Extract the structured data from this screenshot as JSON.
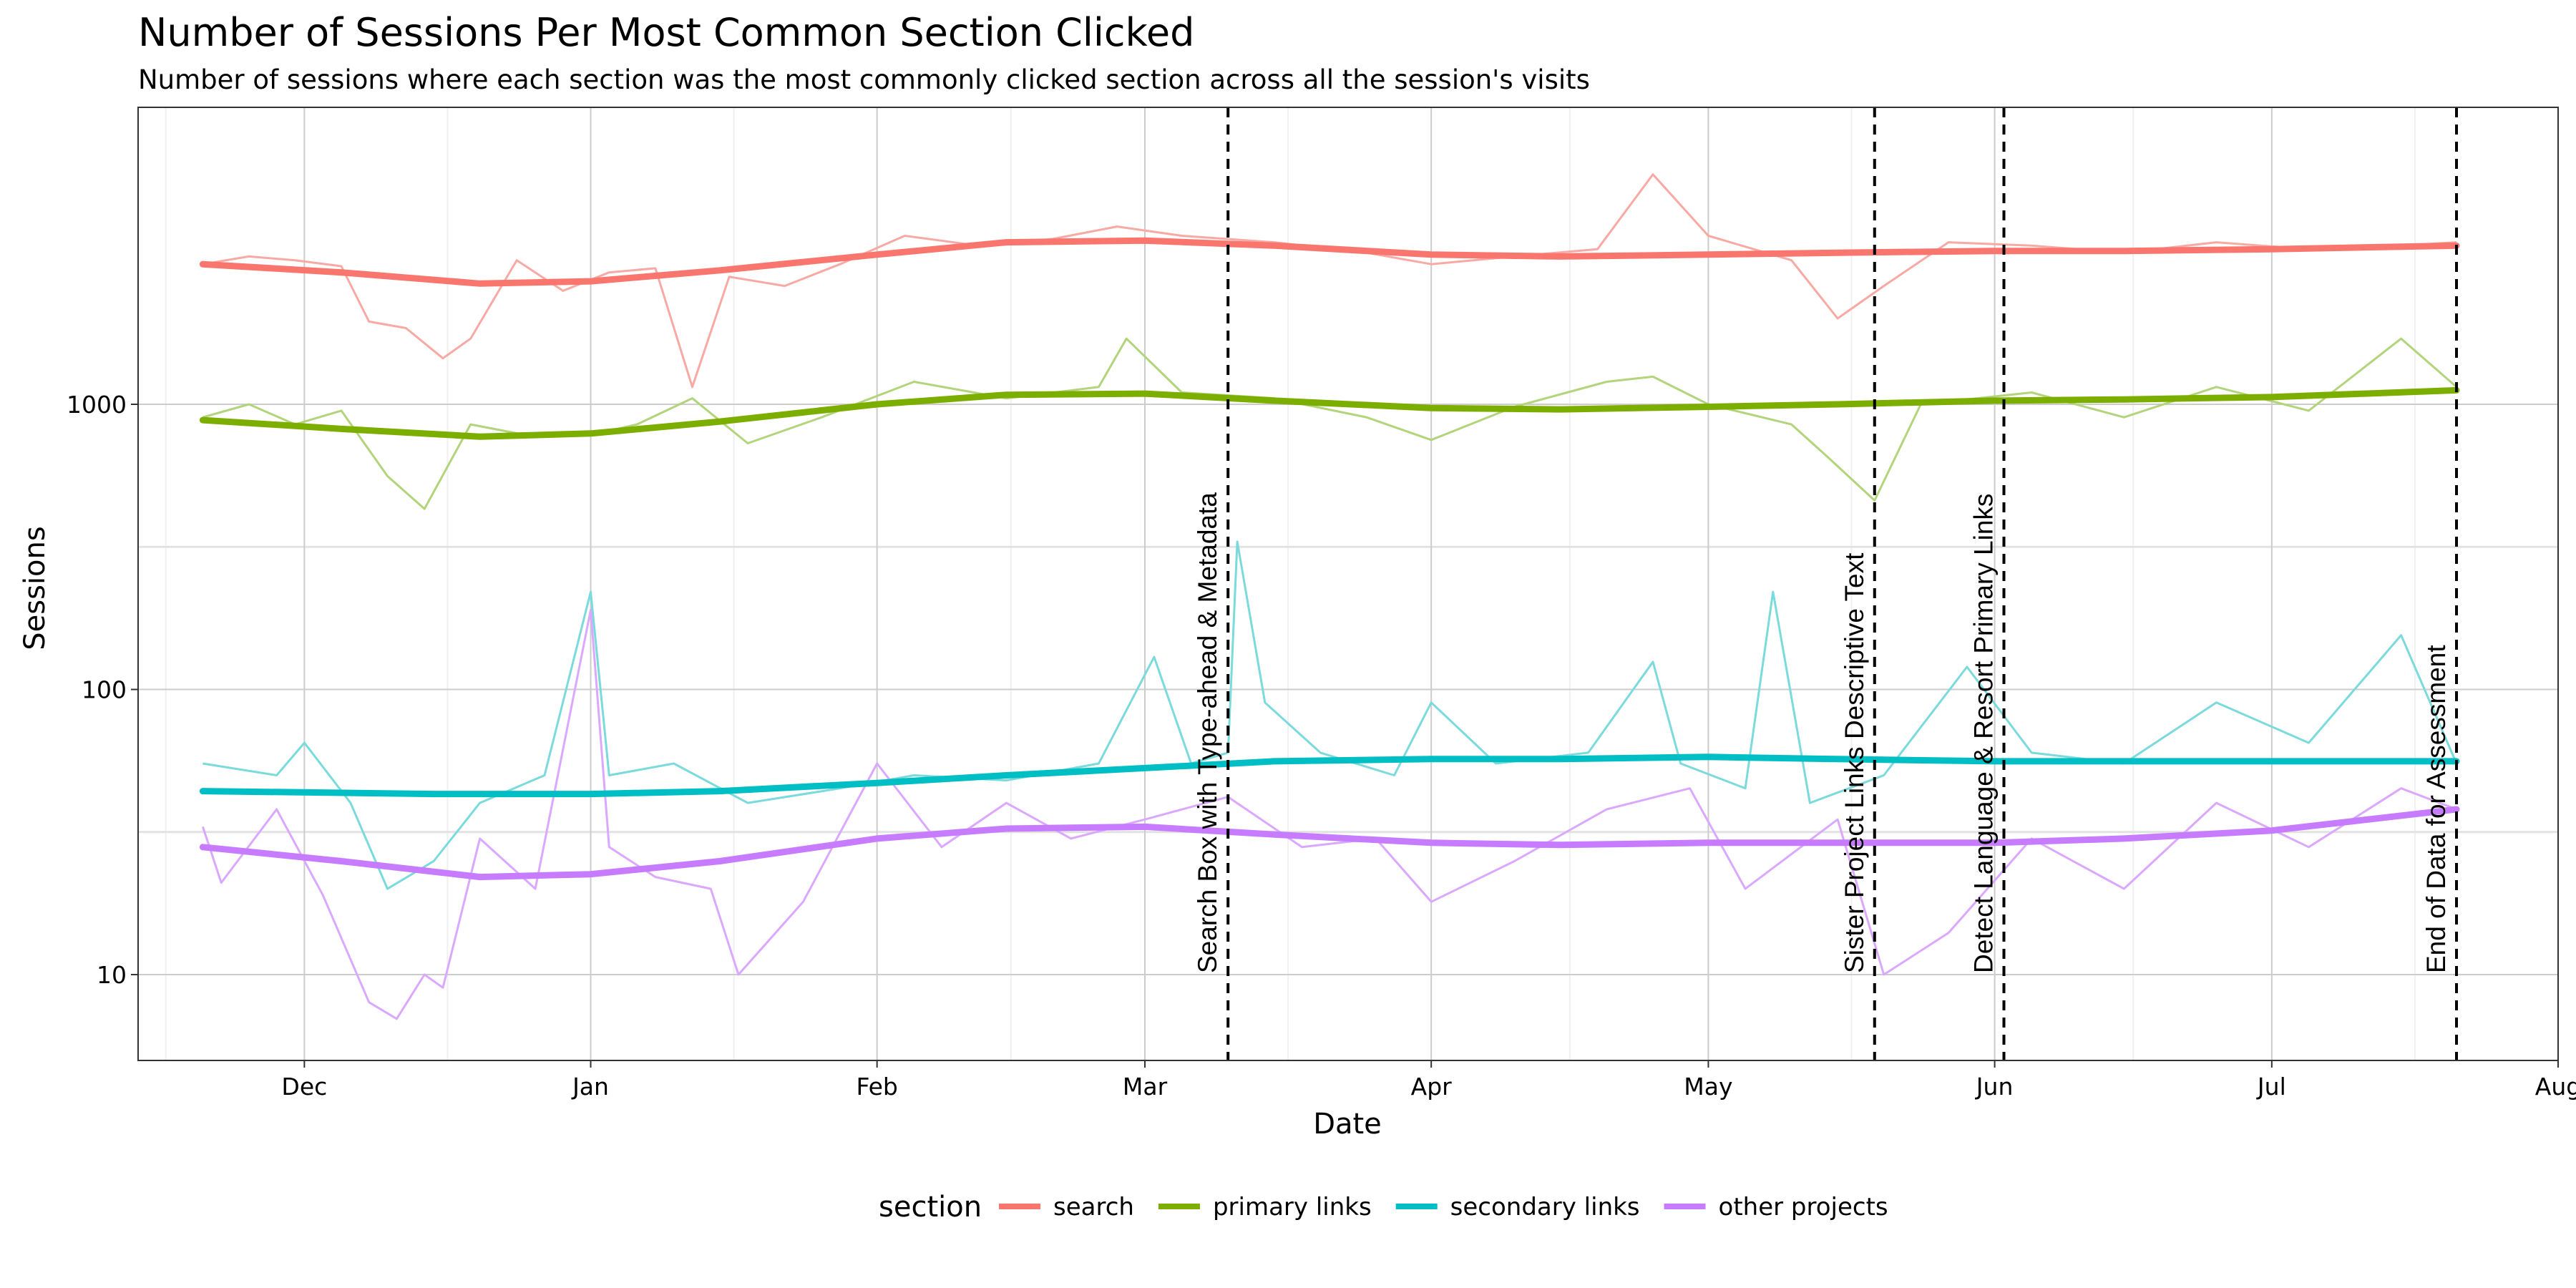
{
  "chart_data": {
    "type": "line",
    "title": "Number of Sessions Per Most Common Section Clicked",
    "subtitle": "Number of sessions where each section was the most commonly clicked section across all the session's visits",
    "xlabel": "Date",
    "ylabel": "Sessions",
    "y_scale": "log10",
    "ylim": [
      5,
      11000
    ],
    "y_ticks": [
      {
        "value": 10,
        "label": "10"
      },
      {
        "value": 100,
        "label": "100"
      },
      {
        "value": 1000,
        "label": "1000"
      }
    ],
    "x_range": [
      "2015-11-13",
      "2016-08-01"
    ],
    "x_ticks": [
      {
        "date": "2015-12-01",
        "label": "Dec"
      },
      {
        "date": "2016-01-01",
        "label": "Jan"
      },
      {
        "date": "2016-02-01",
        "label": "Feb"
      },
      {
        "date": "2016-03-01",
        "label": "Mar"
      },
      {
        "date": "2016-04-01",
        "label": "Apr"
      },
      {
        "date": "2016-05-01",
        "label": "May"
      },
      {
        "date": "2016-06-01",
        "label": "Jun"
      },
      {
        "date": "2016-07-01",
        "label": "Jul"
      },
      {
        "date": "2016-08-01",
        "label": "Aug"
      }
    ],
    "grid": true,
    "legend": {
      "title": "section",
      "placement": "bottom"
    },
    "series_colors": {
      "search": "#F8766D",
      "primary links": "#7CAE00",
      "secondary links": "#00BFC4",
      "other projects": "#C77CFF"
    },
    "series": [
      {
        "name": "search",
        "raw_color": "#F8A9A4",
        "smooth_color": "#F8766D",
        "points": [
          [
            "2015-11-20",
            3100
          ],
          [
            "2015-11-25",
            3300
          ],
          [
            "2015-11-30",
            3200
          ],
          [
            "2015-12-05",
            3050
          ],
          [
            "2015-12-08",
            1950
          ],
          [
            "2015-12-12",
            1850
          ],
          [
            "2015-12-16",
            1450
          ],
          [
            "2015-12-19",
            1700
          ],
          [
            "2015-12-24",
            3200
          ],
          [
            "2015-12-29",
            2500
          ],
          [
            "2016-01-03",
            2900
          ],
          [
            "2016-01-08",
            3000
          ],
          [
            "2016-01-12",
            1150
          ],
          [
            "2016-01-16",
            2800
          ],
          [
            "2016-01-22",
            2600
          ],
          [
            "2016-01-28",
            3100
          ],
          [
            "2016-02-04",
            3900
          ],
          [
            "2016-02-12",
            3600
          ],
          [
            "2016-02-20",
            3800
          ],
          [
            "2016-02-27",
            4200
          ],
          [
            "2016-03-05",
            3900
          ],
          [
            "2016-03-15",
            3700
          ],
          [
            "2016-03-25",
            3400
          ],
          [
            "2016-04-01",
            3100
          ],
          [
            "2016-04-10",
            3300
          ],
          [
            "2016-04-19",
            3500
          ],
          [
            "2016-04-25",
            6400
          ],
          [
            "2016-05-01",
            3900
          ],
          [
            "2016-05-10",
            3200
          ],
          [
            "2016-05-15",
            2000
          ],
          [
            "2016-05-20",
            2600
          ],
          [
            "2016-05-27",
            3700
          ],
          [
            "2016-06-05",
            3600
          ],
          [
            "2016-06-15",
            3400
          ],
          [
            "2016-06-25",
            3700
          ],
          [
            "2016-07-05",
            3500
          ],
          [
            "2016-07-15",
            3600
          ],
          [
            "2016-07-21",
            3700
          ]
        ],
        "trend": [
          [
            "2015-11-20",
            3100
          ],
          [
            "2015-12-05",
            2900
          ],
          [
            "2015-12-20",
            2650
          ],
          [
            "2016-01-01",
            2700
          ],
          [
            "2016-01-15",
            2950
          ],
          [
            "2016-02-01",
            3350
          ],
          [
            "2016-02-15",
            3700
          ],
          [
            "2016-03-01",
            3750
          ],
          [
            "2016-03-15",
            3600
          ],
          [
            "2016-04-01",
            3350
          ],
          [
            "2016-04-15",
            3300
          ],
          [
            "2016-05-01",
            3350
          ],
          [
            "2016-05-15",
            3400
          ],
          [
            "2016-06-01",
            3450
          ],
          [
            "2016-06-15",
            3450
          ],
          [
            "2016-07-01",
            3500
          ],
          [
            "2016-07-21",
            3600
          ]
        ]
      },
      {
        "name": "primary links",
        "raw_color": "#B2D47A",
        "smooth_color": "#7CAE00",
        "points": [
          [
            "2015-11-20",
            900
          ],
          [
            "2015-11-25",
            1000
          ],
          [
            "2015-11-30",
            850
          ],
          [
            "2015-12-05",
            950
          ],
          [
            "2015-12-10",
            560
          ],
          [
            "2015-12-14",
            430
          ],
          [
            "2015-12-19",
            850
          ],
          [
            "2015-12-25",
            780
          ],
          [
            "2016-01-01",
            780
          ],
          [
            "2016-01-06",
            850
          ],
          [
            "2016-01-12",
            1050
          ],
          [
            "2016-01-18",
            730
          ],
          [
            "2016-01-26",
            900
          ],
          [
            "2016-02-05",
            1200
          ],
          [
            "2016-02-15",
            1050
          ],
          [
            "2016-02-25",
            1150
          ],
          [
            "2016-02-28",
            1700
          ],
          [
            "2016-03-05",
            1100
          ],
          [
            "2016-03-15",
            1050
          ],
          [
            "2016-03-25",
            900
          ],
          [
            "2016-04-01",
            750
          ],
          [
            "2016-04-10",
            980
          ],
          [
            "2016-04-20",
            1200
          ],
          [
            "2016-04-25",
            1250
          ],
          [
            "2016-05-01",
            1000
          ],
          [
            "2016-05-10",
            850
          ],
          [
            "2016-05-14",
            650
          ],
          [
            "2016-05-19",
            460
          ],
          [
            "2016-05-24",
            1000
          ],
          [
            "2016-06-05",
            1100
          ],
          [
            "2016-06-15",
            900
          ],
          [
            "2016-06-25",
            1150
          ],
          [
            "2016-07-05",
            950
          ],
          [
            "2016-07-15",
            1700
          ],
          [
            "2016-07-21",
            1150
          ]
        ],
        "trend": [
          [
            "2015-11-20",
            880
          ],
          [
            "2015-12-05",
            820
          ],
          [
            "2015-12-20",
            770
          ],
          [
            "2016-01-01",
            790
          ],
          [
            "2016-01-15",
            870
          ],
          [
            "2016-02-01",
            1000
          ],
          [
            "2016-02-15",
            1080
          ],
          [
            "2016-03-01",
            1090
          ],
          [
            "2016-03-15",
            1030
          ],
          [
            "2016-04-01",
            970
          ],
          [
            "2016-04-15",
            960
          ],
          [
            "2016-05-01",
            980
          ],
          [
            "2016-05-15",
            1000
          ],
          [
            "2016-06-01",
            1030
          ],
          [
            "2016-06-15",
            1040
          ],
          [
            "2016-07-01",
            1060
          ],
          [
            "2016-07-21",
            1120
          ]
        ]
      },
      {
        "name": "secondary links",
        "raw_color": "#7ADADC",
        "smooth_color": "#00BFC4",
        "points": [
          [
            "2015-11-20",
            55
          ],
          [
            "2015-11-28",
            50
          ],
          [
            "2015-12-01",
            65
          ],
          [
            "2015-12-06",
            40
          ],
          [
            "2015-12-10",
            20
          ],
          [
            "2015-12-15",
            25
          ],
          [
            "2015-12-20",
            40
          ],
          [
            "2015-12-27",
            50
          ],
          [
            "2016-01-01",
            220
          ],
          [
            "2016-01-03",
            50
          ],
          [
            "2016-01-10",
            55
          ],
          [
            "2016-01-18",
            40
          ],
          [
            "2016-01-28",
            45
          ],
          [
            "2016-02-05",
            50
          ],
          [
            "2016-02-15",
            48
          ],
          [
            "2016-02-25",
            55
          ],
          [
            "2016-03-02",
            130
          ],
          [
            "2016-03-06",
            55
          ],
          [
            "2016-03-10",
            60
          ],
          [
            "2016-03-11",
            330
          ],
          [
            "2016-03-14",
            90
          ],
          [
            "2016-03-20",
            60
          ],
          [
            "2016-03-28",
            50
          ],
          [
            "2016-04-01",
            90
          ],
          [
            "2016-04-08",
            55
          ],
          [
            "2016-04-18",
            60
          ],
          [
            "2016-04-25",
            125
          ],
          [
            "2016-04-28",
            55
          ],
          [
            "2016-05-05",
            45
          ],
          [
            "2016-05-08",
            220
          ],
          [
            "2016-05-12",
            40
          ],
          [
            "2016-05-20",
            50
          ],
          [
            "2016-05-29",
            120
          ],
          [
            "2016-06-05",
            60
          ],
          [
            "2016-06-15",
            55
          ],
          [
            "2016-06-25",
            90
          ],
          [
            "2016-07-05",
            65
          ],
          [
            "2016-07-15",
            155
          ],
          [
            "2016-07-21",
            55
          ]
        ],
        "trend": [
          [
            "2015-11-20",
            44
          ],
          [
            "2015-12-15",
            43
          ],
          [
            "2016-01-01",
            43
          ],
          [
            "2016-01-15",
            44
          ],
          [
            "2016-02-01",
            47
          ],
          [
            "2016-02-15",
            50
          ],
          [
            "2016-03-01",
            53
          ],
          [
            "2016-03-15",
            56
          ],
          [
            "2016-04-01",
            57
          ],
          [
            "2016-04-15",
            57
          ],
          [
            "2016-05-01",
            58
          ],
          [
            "2016-05-15",
            57
          ],
          [
            "2016-06-01",
            56
          ],
          [
            "2016-06-15",
            56
          ],
          [
            "2016-07-01",
            56
          ],
          [
            "2016-07-21",
            56
          ]
        ]
      },
      {
        "name": "other projects",
        "raw_color": "#DBA8FF",
        "smooth_color": "#C77CFF",
        "points": [
          [
            "2015-11-20",
            33
          ],
          [
            "2015-11-22",
            21
          ],
          [
            "2015-11-28",
            38
          ],
          [
            "2015-12-03",
            19
          ],
          [
            "2015-12-08",
            8
          ],
          [
            "2015-12-11",
            7
          ],
          [
            "2015-12-14",
            10
          ],
          [
            "2015-12-16",
            9
          ],
          [
            "2015-12-20",
            30
          ],
          [
            "2015-12-26",
            20
          ],
          [
            "2016-01-01",
            190
          ],
          [
            "2016-01-03",
            28
          ],
          [
            "2016-01-08",
            22
          ],
          [
            "2016-01-14",
            20
          ],
          [
            "2016-01-17",
            10
          ],
          [
            "2016-01-24",
            18
          ],
          [
            "2016-02-01",
            55
          ],
          [
            "2016-02-08",
            28
          ],
          [
            "2016-02-15",
            40
          ],
          [
            "2016-02-22",
            30
          ],
          [
            "2016-03-01",
            35
          ],
          [
            "2016-03-10",
            42
          ],
          [
            "2016-03-18",
            28
          ],
          [
            "2016-03-26",
            30
          ],
          [
            "2016-04-01",
            18
          ],
          [
            "2016-04-10",
            25
          ],
          [
            "2016-04-20",
            38
          ],
          [
            "2016-04-29",
            45
          ],
          [
            "2016-05-05",
            20
          ],
          [
            "2016-05-15",
            35
          ],
          [
            "2016-05-20",
            10
          ],
          [
            "2016-05-27",
            14
          ],
          [
            "2016-06-05",
            30
          ],
          [
            "2016-06-15",
            20
          ],
          [
            "2016-06-25",
            40
          ],
          [
            "2016-07-05",
            28
          ],
          [
            "2016-07-15",
            45
          ],
          [
            "2016-07-21",
            38
          ]
        ],
        "trend": [
          [
            "2015-11-20",
            28
          ],
          [
            "2015-12-05",
            25
          ],
          [
            "2015-12-20",
            22
          ],
          [
            "2016-01-01",
            22.5
          ],
          [
            "2016-01-15",
            25
          ],
          [
            "2016-02-01",
            30
          ],
          [
            "2016-02-15",
            32.5
          ],
          [
            "2016-03-01",
            33
          ],
          [
            "2016-03-15",
            31
          ],
          [
            "2016-04-01",
            29
          ],
          [
            "2016-04-15",
            28.5
          ],
          [
            "2016-05-01",
            29
          ],
          [
            "2016-05-15",
            29
          ],
          [
            "2016-06-01",
            29
          ],
          [
            "2016-06-15",
            30
          ],
          [
            "2016-07-01",
            32
          ],
          [
            "2016-07-21",
            38
          ]
        ]
      }
    ],
    "annotations": [
      {
        "date": "2016-03-10",
        "label": "Search Box with Type-ahead & Metadata"
      },
      {
        "date": "2016-05-19",
        "label": "Sister Project Links Descriptive Text"
      },
      {
        "date": "2016-06-02",
        "label": "Detect Language & Resort Primary Links"
      },
      {
        "date": "2016-07-21",
        "label": "End of Data for Assessment"
      }
    ]
  }
}
